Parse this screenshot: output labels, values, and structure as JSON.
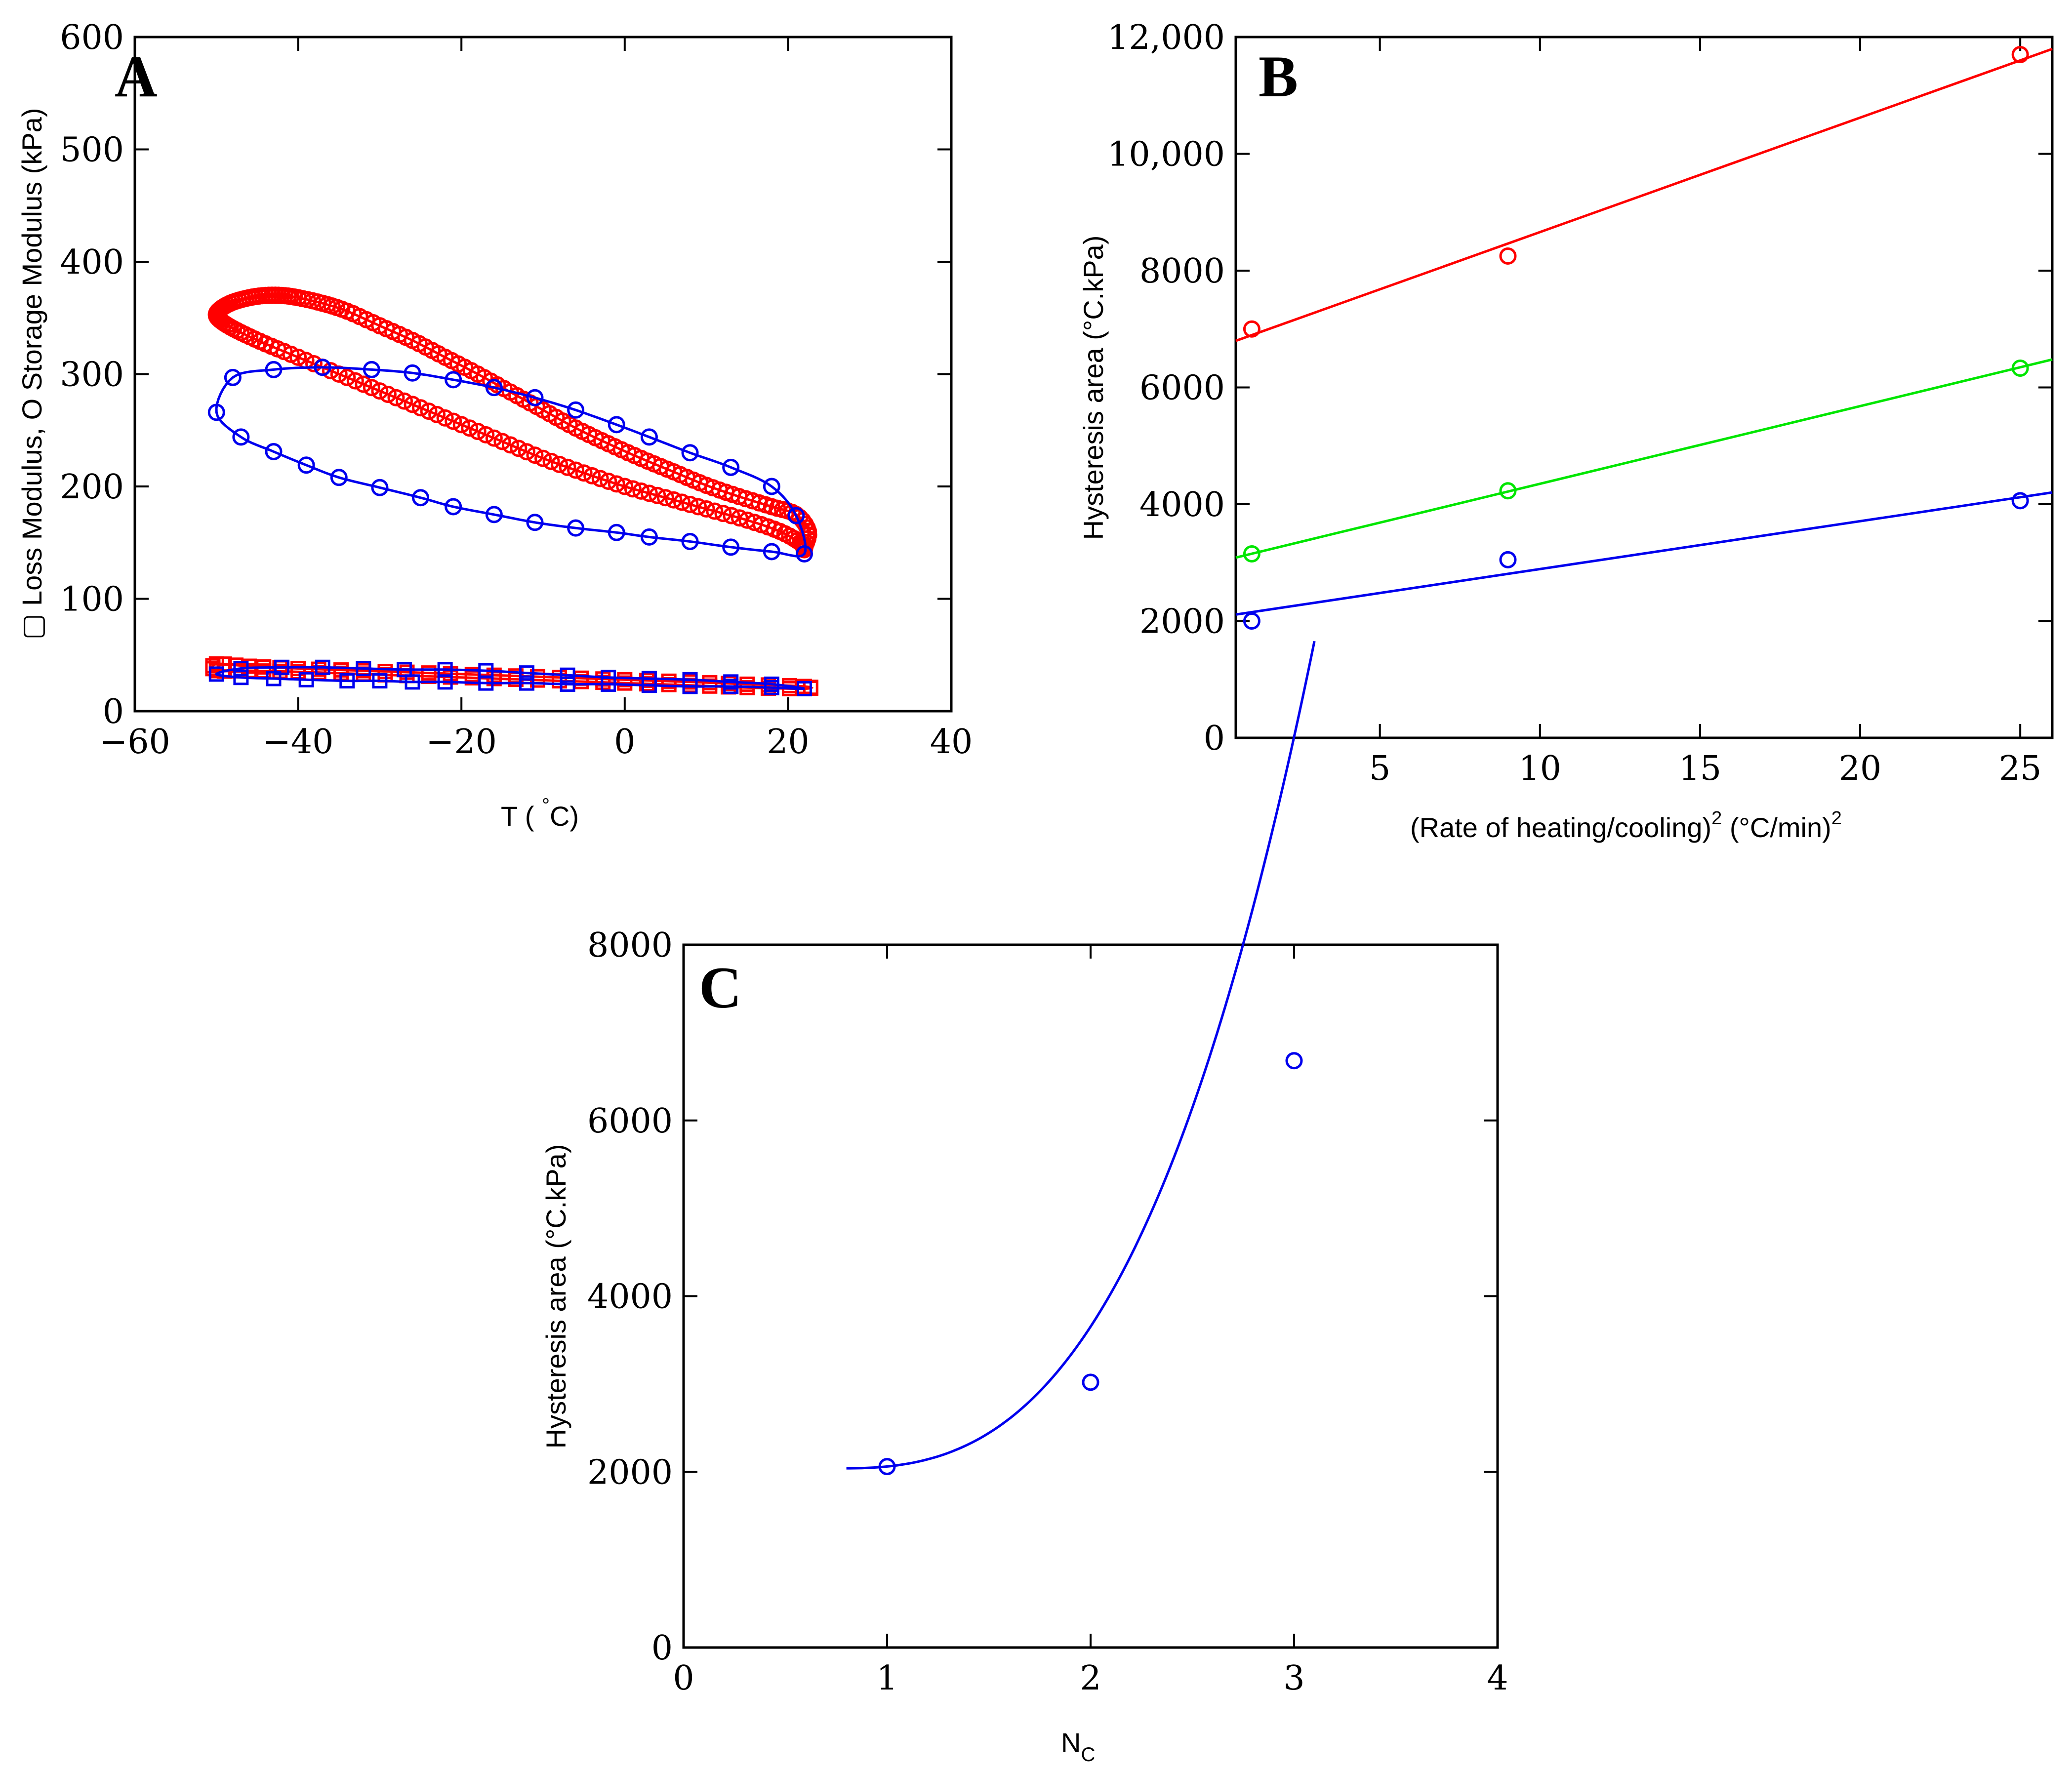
{
  "colors": {
    "red": "#ff0000",
    "green": "#00e600",
    "blue": "#0000ee",
    "axis": "#000000"
  },
  "chart_data": [
    {
      "panel": "A",
      "type": "scatter",
      "title": "",
      "xlabel": "T (°C)",
      "xlabel_main": "T ( ",
      "xlabel_degree": "°",
      "xlabel_end": "C)",
      "ylabel": "▢ Loss Modulus, O Storage Modulus (kPa)",
      "xlim": [
        -60,
        40
      ],
      "ylim": [
        0,
        600
      ],
      "xticks": [
        -60,
        -40,
        -20,
        0,
        20,
        40
      ],
      "xtick_labels": [
        "−60",
        "−40",
        "−20",
        "0",
        "20",
        "40"
      ],
      "yticks": [
        0,
        100,
        200,
        300,
        400,
        500,
        600
      ],
      "ytick_labels": [
        "0",
        "100",
        "200",
        "300",
        "400",
        "500",
        "600"
      ],
      "series": [
        {
          "name": "storage modulus, red loop (dense)",
          "color": "red",
          "marker": "circle",
          "closed": true,
          "x": [
            22,
            21.5,
            19,
            15,
            10,
            5,
            0,
            -5,
            -10,
            -15,
            -20,
            -25,
            -30,
            -35,
            -40,
            -44,
            -47,
            -49,
            -50,
            -49.5,
            -48,
            -46,
            -44,
            -42,
            -40,
            -37,
            -34,
            -30,
            -26,
            -22,
            -18,
            -14,
            -10,
            -6,
            -2,
            2,
            6,
            10,
            14,
            18,
            21,
            22.5,
            22
          ],
          "y": [
            145,
            150,
            160,
            170,
            180,
            190,
            200,
            212,
            225,
            240,
            255,
            270,
            285,
            300,
            315,
            327,
            337,
            345,
            352,
            358,
            364,
            368,
            370,
            370,
            368,
            363,
            356,
            343,
            330,
            315,
            300,
            284,
            268,
            252,
            238,
            225,
            213,
            201,
            191,
            182,
            175,
            160,
            145
          ]
        },
        {
          "name": "storage modulus, blue loop",
          "color": "blue",
          "marker": "circle",
          "closed": true,
          "x": [
            22,
            18,
            13,
            8,
            3,
            -1,
            -6,
            -11,
            -16,
            -21,
            -25,
            -30,
            -35,
            -39,
            -43,
            -47,
            -50,
            -48,
            -43,
            -37,
            -31,
            -26,
            -21,
            -16,
            -11,
            -6,
            -1,
            3,
            8,
            13,
            18,
            21
          ],
          "y": [
            140,
            142,
            146,
            151,
            155,
            159,
            163,
            168,
            175,
            182,
            190,
            199,
            208,
            219,
            231,
            244,
            266,
            297,
            304,
            306,
            304,
            301,
            295,
            288,
            279,
            268,
            255,
            244,
            230,
            217,
            200,
            174
          ],
          "marker_indices": [
            0,
            1,
            2,
            3,
            4,
            5,
            6,
            7,
            8,
            9,
            10,
            11,
            12,
            13,
            14,
            15,
            16,
            17,
            18,
            19,
            20,
            21,
            22,
            23,
            24,
            25,
            26,
            27,
            28,
            29,
            30,
            31
          ]
        },
        {
          "name": "loss modulus, red",
          "color": "red",
          "marker": "square",
          "closed": true,
          "x": [
            22,
            15,
            8,
            0,
            -8,
            -16,
            -24,
            -32,
            -40,
            -46,
            -50,
            -50,
            -46,
            -40,
            -32,
            -24,
            -16,
            -8,
            0,
            8,
            15,
            22
          ],
          "y": [
            22,
            24,
            26,
            28,
            30,
            32,
            34,
            36,
            38,
            40,
            42,
            36,
            36,
            35,
            33,
            31,
            29,
            27,
            25,
            23,
            21,
            20
          ]
        },
        {
          "name": "loss modulus, blue",
          "color": "blue",
          "marker": "square",
          "closed": true,
          "x": [
            22,
            18,
            13,
            8,
            3,
            -2,
            -7,
            -12,
            -17,
            -22,
            -26,
            -30,
            -34,
            -39,
            -43,
            -47,
            -50,
            -47,
            -42,
            -37,
            -32,
            -27,
            -22,
            -17,
            -12,
            -7,
            -2,
            3,
            8,
            13,
            18
          ],
          "y": [
            20,
            21,
            22,
            22,
            23,
            24,
            24,
            25,
            25,
            26,
            26,
            27,
            27,
            28,
            29,
            30,
            33,
            38,
            39,
            39,
            38,
            37,
            37,
            36,
            34,
            32,
            30,
            29,
            28,
            26,
            24
          ]
        }
      ]
    },
    {
      "panel": "B",
      "type": "scatter",
      "title": "",
      "xlabel": "(Rate of heating/cooling)² (°C/min)²",
      "xlabel_part1": "(Rate of heating/cooling)",
      "xlabel_sup1": "2",
      "xlabel_part2": " (°C/min)",
      "xlabel_sup2": "2",
      "ylabel": "Hysteresis area (°C.kPa)",
      "xlim": [
        0.5,
        26
      ],
      "ylim": [
        0,
        12000
      ],
      "xticks": [
        5,
        10,
        15,
        20,
        25
      ],
      "xtick_labels": [
        "5",
        "10",
        "15",
        "20",
        "25"
      ],
      "yticks": [
        0,
        2000,
        4000,
        6000,
        8000,
        10000,
        12000
      ],
      "ytick_labels": [
        "0",
        "2000",
        "4000",
        "6000",
        "8000",
        "10,000",
        "12,000"
      ],
      "series": [
        {
          "name": "red",
          "color": "red",
          "x": [
            1,
            9,
            25
          ],
          "y": [
            7000,
            8250,
            11700
          ],
          "fit": {
            "slope": 196,
            "intercept": 6700
          }
        },
        {
          "name": "green",
          "color": "green",
          "x": [
            1,
            9,
            25
          ],
          "y": [
            3150,
            4230,
            6330
          ],
          "fit": {
            "slope": 133,
            "intercept": 3020
          }
        },
        {
          "name": "blue",
          "color": "blue",
          "x": [
            1,
            9,
            25
          ],
          "y": [
            2000,
            3050,
            4060
          ],
          "fit": {
            "slope": 82,
            "intercept": 2070
          }
        }
      ]
    },
    {
      "panel": "C",
      "type": "scatter",
      "title": "",
      "xlabel": "NC",
      "xlabel_main": "N",
      "xlabel_sub": "C",
      "ylabel": "Hysteresis area (°C.kPa)",
      "xlim": [
        0,
        4
      ],
      "ylim": [
        0,
        8000
      ],
      "xticks": [
        0,
        1,
        2,
        3,
        4
      ],
      "xtick_labels": [
        "0",
        "1",
        "2",
        "3",
        "4"
      ],
      "yticks": [
        0,
        2000,
        4000,
        6000,
        8000
      ],
      "ytick_labels": [
        "0",
        "2000",
        "4000",
        "6000",
        "8000"
      ],
      "series": [
        {
          "name": "blue",
          "color": "blue",
          "x": [
            1,
            2,
            3
          ],
          "y": [
            2060,
            3020,
            6680
          ],
          "fit": {
            "type": "cubic",
            "x_from": 0.8,
            "x_to": 3.1,
            "a": 2040,
            "b": 400,
            "c": 0,
            "d": 600
          }
        }
      ]
    }
  ]
}
